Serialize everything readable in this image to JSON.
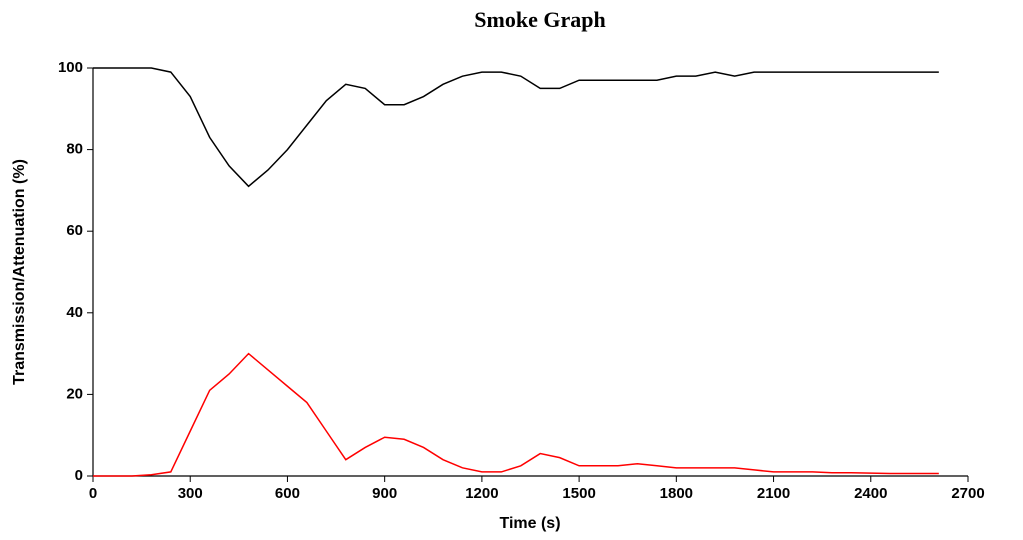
{
  "chart_data": {
    "type": "line",
    "title": "Smoke Graph",
    "x_label": "Time (s)",
    "y_label": "Transmission/Attenuation (%)",
    "x": [
      0,
      60,
      120,
      180,
      240,
      300,
      360,
      420,
      480,
      540,
      600,
      660,
      720,
      780,
      840,
      900,
      960,
      1020,
      1080,
      1140,
      1200,
      1260,
      1320,
      1380,
      1440,
      1500,
      1560,
      1620,
      1680,
      1740,
      1800,
      1860,
      1920,
      1980,
      2040,
      2100,
      2160,
      2220,
      2280,
      2340,
      2400,
      2460,
      2520,
      2580,
      2610
    ],
    "series": [
      {
        "color": "#000000",
        "values": [
          100,
          100,
          100,
          100,
          99,
          93,
          83,
          76,
          71,
          75,
          80,
          86,
          92,
          96,
          95,
          91,
          91,
          93,
          96,
          98,
          99,
          99,
          98,
          95,
          95,
          97,
          97,
          97,
          97,
          97,
          98,
          98,
          99,
          98,
          99,
          99,
          99,
          99,
          99,
          99,
          99,
          99,
          99,
          99,
          99
        ]
      },
      {
        "color": "#ff0000",
        "values": [
          0,
          0,
          0,
          0.3,
          1,
          11,
          21,
          25,
          30,
          26,
          22,
          18,
          11,
          4,
          7,
          9.5,
          9,
          7,
          4,
          2,
          1,
          1,
          2.5,
          5.5,
          4.5,
          2.5,
          2.5,
          2.5,
          3,
          2.5,
          2,
          2,
          2,
          2,
          1.5,
          1,
          1,
          1,
          0.8,
          0.8,
          0.7,
          0.6,
          0.6,
          0.6,
          0.6
        ]
      }
    ],
    "xlim": [
      0,
      2700
    ],
    "xticks": [
      0,
      300,
      600,
      900,
      1200,
      1500,
      1800,
      2100,
      2400,
      2700
    ],
    "ylim": [
      0,
      100
    ],
    "yticks": [
      0,
      20,
      40,
      60,
      80,
      100
    ]
  }
}
